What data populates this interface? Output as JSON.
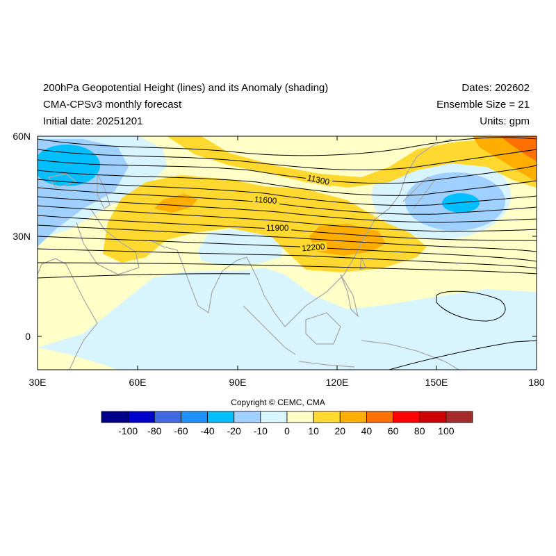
{
  "header": {
    "title_line1": "200hPa Geopotential Height (lines) and its Anomaly (shading)",
    "title_line2": "CMA-CPSv3 monthly forecast",
    "title_line3": "Initial date: 20251201",
    "right_line1": "Dates: 202602",
    "right_line2": "Ensemble Size = 21",
    "right_line3": "Units: gpm"
  },
  "map": {
    "lon_range": [
      30,
      180
    ],
    "lat_range": [
      -10,
      60
    ],
    "x_ticks": [
      "30E",
      "60E",
      "90E",
      "120E",
      "150E",
      "180"
    ],
    "y_ticks": [
      "60N",
      "30N",
      "0"
    ],
    "contour_labels": [
      "11300",
      "11600",
      "11900",
      "12200"
    ]
  },
  "colorbar": {
    "labels": [
      "-100",
      "-80",
      "-60",
      "-40",
      "-20",
      "-10",
      "0",
      "10",
      "20",
      "40",
      "60",
      "80",
      "100"
    ],
    "colors": [
      "#00008b",
      "#0000cd",
      "#4169e1",
      "#1e90ff",
      "#00bfff",
      "#a0d0ff",
      "#d8f4ff",
      "#ffffc8",
      "#ffd92f",
      "#ffae00",
      "#ff7000",
      "#ff0000",
      "#cc0000",
      "#a52a2a"
    ]
  },
  "footer": {
    "copyright": "Copyright © CEMC, CMA"
  }
}
